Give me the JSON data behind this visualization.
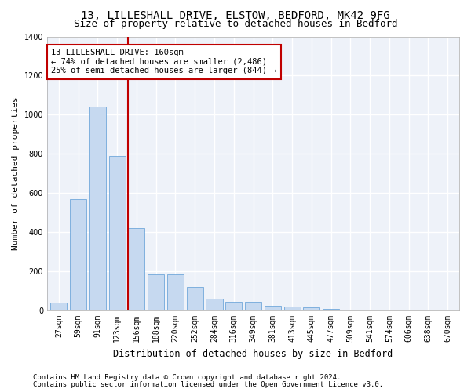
{
  "title1": "13, LILLESHALL DRIVE, ELSTOW, BEDFORD, MK42 9FG",
  "title2": "Size of property relative to detached houses in Bedford",
  "xlabel": "Distribution of detached houses by size in Bedford",
  "ylabel": "Number of detached properties",
  "categories": [
    "27sqm",
    "59sqm",
    "91sqm",
    "123sqm",
    "156sqm",
    "188sqm",
    "220sqm",
    "252sqm",
    "284sqm",
    "316sqm",
    "349sqm",
    "381sqm",
    "413sqm",
    "445sqm",
    "477sqm",
    "509sqm",
    "541sqm",
    "574sqm",
    "606sqm",
    "638sqm",
    "670sqm"
  ],
  "values": [
    40,
    570,
    1040,
    790,
    420,
    185,
    185,
    120,
    60,
    45,
    45,
    25,
    22,
    15,
    10,
    0,
    0,
    0,
    0,
    0,
    0
  ],
  "bar_color": "#c6d9f0",
  "bar_edge_color": "#5b9bd5",
  "vline_color": "#c00000",
  "vline_index": 4,
  "annotation_line1": "13 LILLESHALL DRIVE: 160sqm",
  "annotation_line2": "← 74% of detached houses are smaller (2,486)",
  "annotation_line3": "25% of semi-detached houses are larger (844) →",
  "ylim": [
    0,
    1400
  ],
  "yticks": [
    0,
    200,
    400,
    600,
    800,
    1000,
    1200,
    1400
  ],
  "footer1": "Contains HM Land Registry data © Crown copyright and database right 2024.",
  "footer2": "Contains public sector information licensed under the Open Government Licence v3.0.",
  "bg_color": "#eef2f9",
  "grid_color": "#ffffff",
  "title1_fontsize": 10,
  "title2_fontsize": 9,
  "tick_fontsize": 7,
  "ylabel_fontsize": 8,
  "xlabel_fontsize": 8.5,
  "footer_fontsize": 6.5,
  "annot_fontsize": 7.5
}
